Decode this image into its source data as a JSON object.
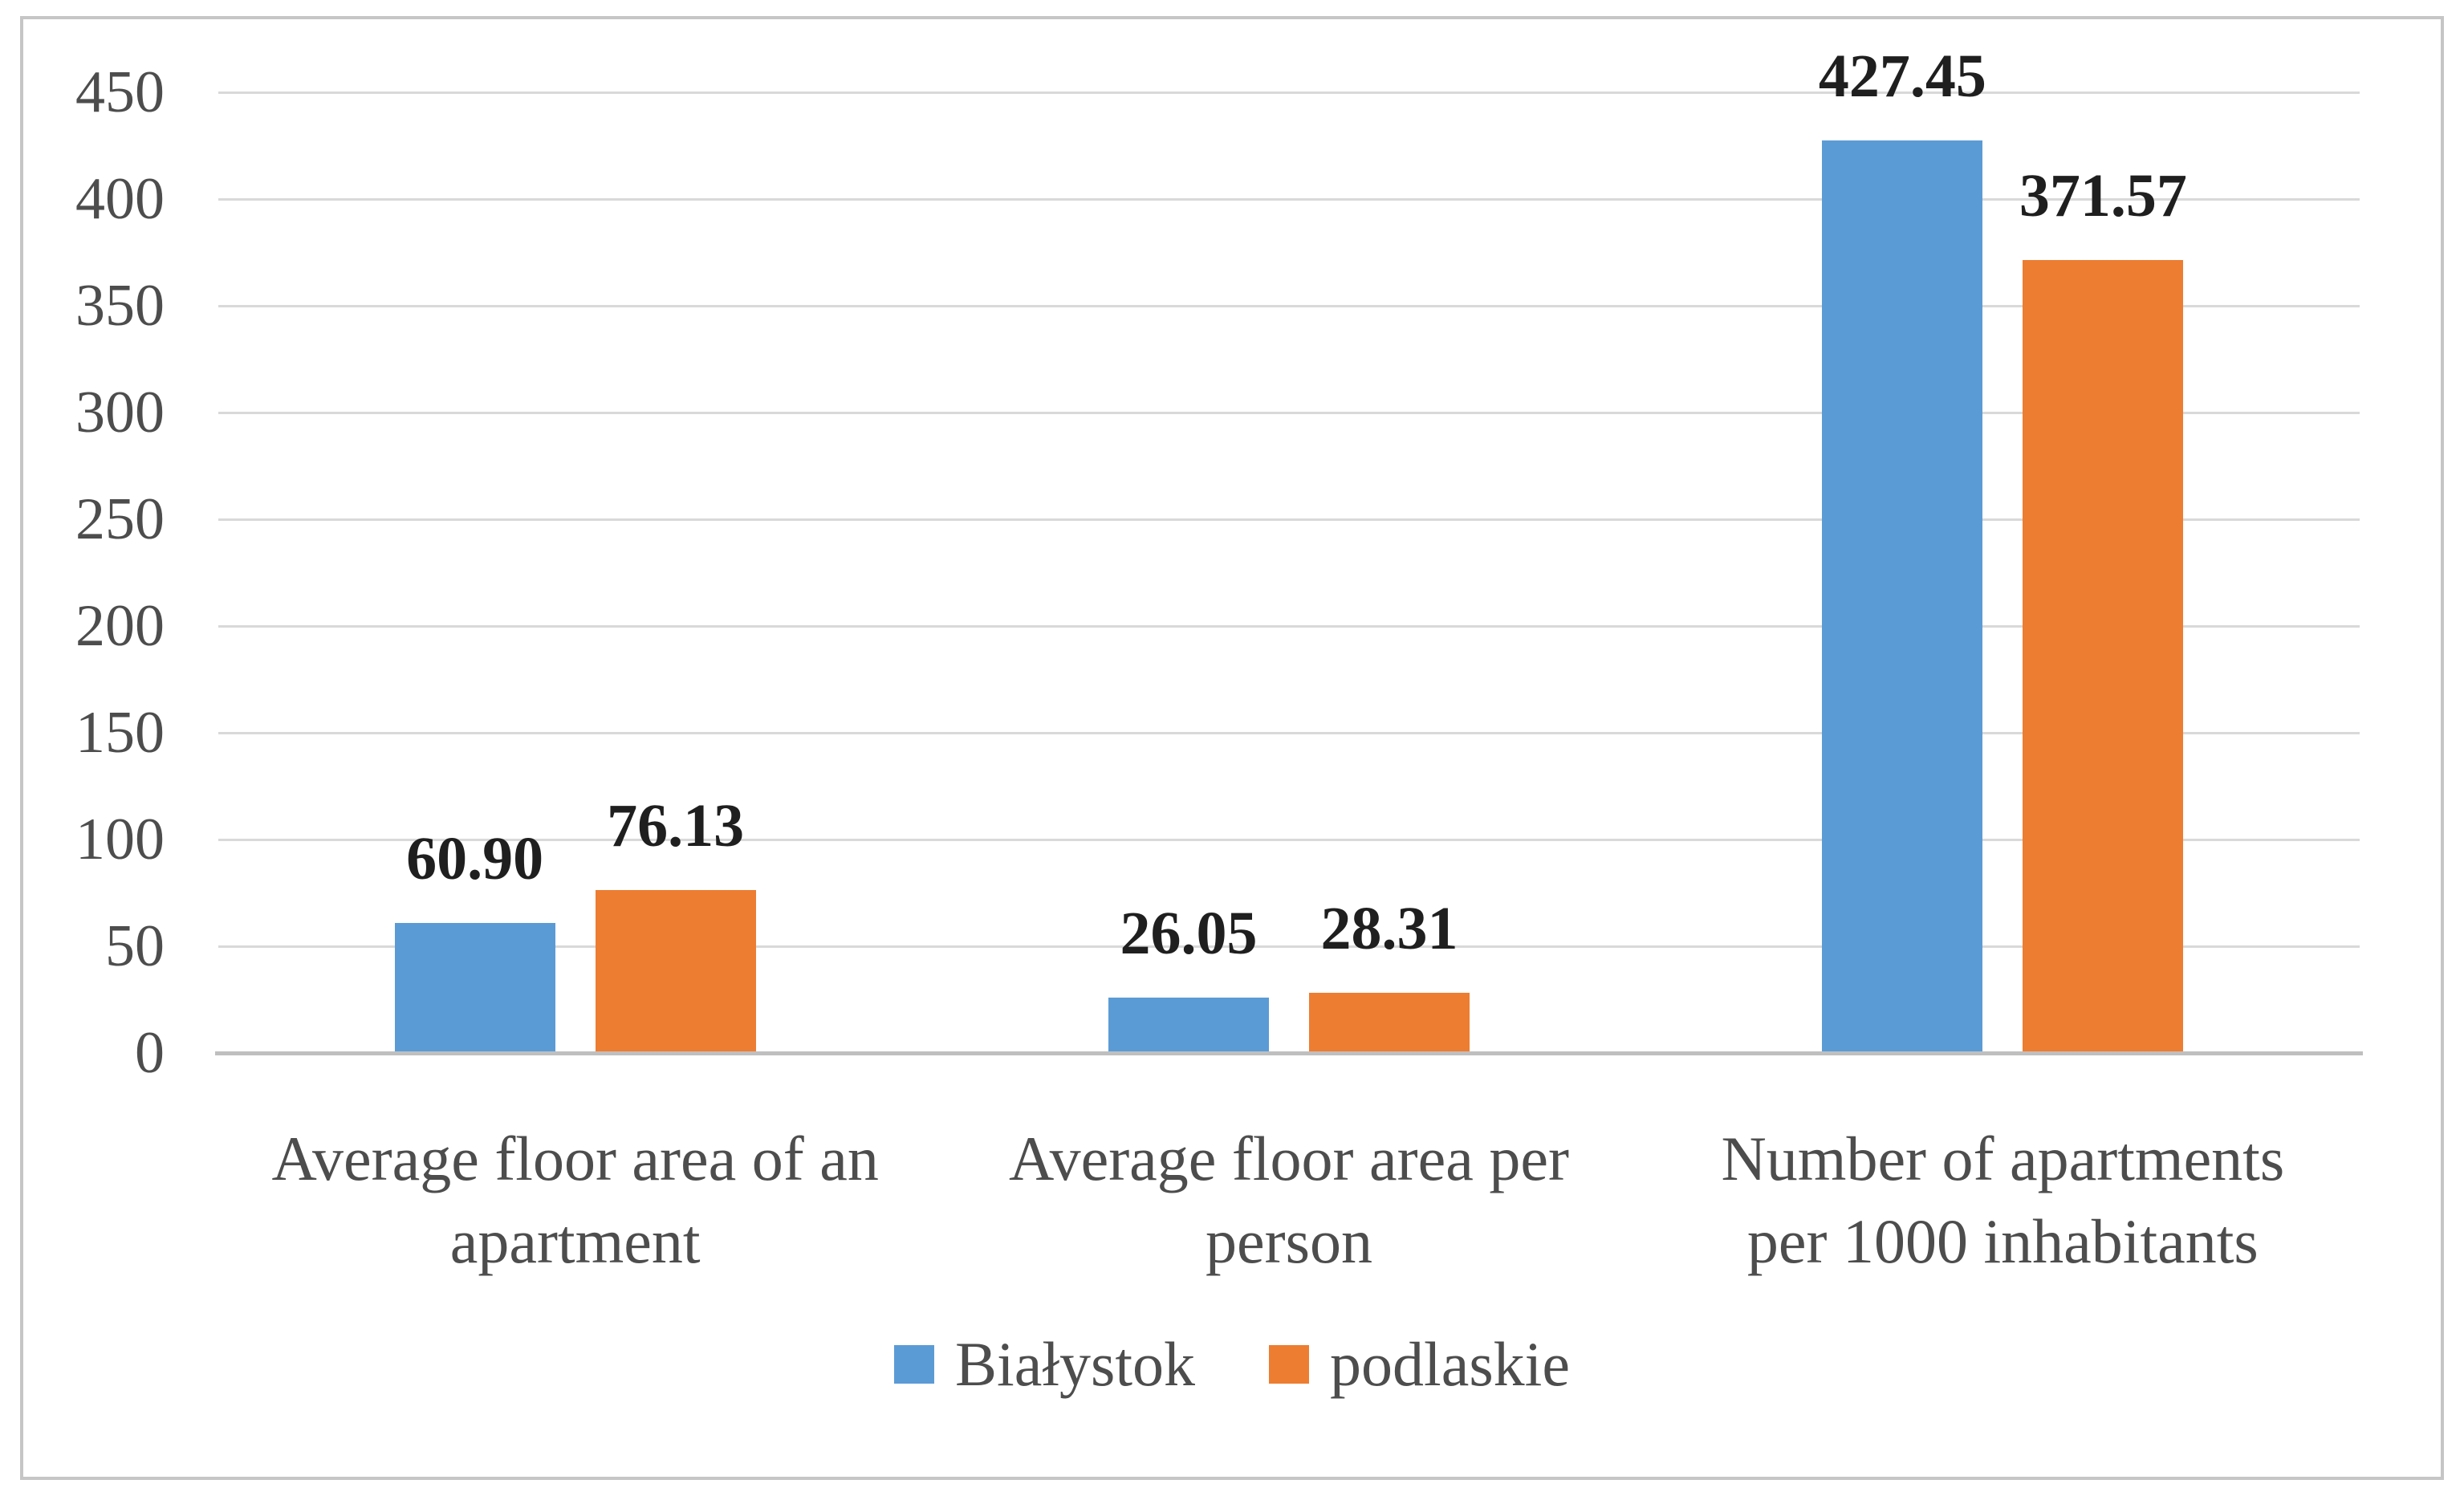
{
  "figure": {
    "background_color": "#FFFFFF",
    "border_color": "#C6C6C6",
    "gridline_color": "#D9D9D9",
    "axis_line_color": "#BFBFBF",
    "text_color": "#4D4D4D",
    "data_label_color": "#1F1F1F"
  },
  "chart_data": {
    "type": "bar",
    "title": "",
    "xlabel": "",
    "ylabel": "",
    "grid": true,
    "legend_position": "bottom",
    "categories": [
      "Average floor area of an apartment",
      "Average floor area per person",
      "Number of apartments per 1000 inhabitants"
    ],
    "category_lines": [
      [
        "Average floor area of an",
        "apartment"
      ],
      [
        "Average floor area per",
        "person"
      ],
      [
        "Number of apartments",
        "per 1000 inhabitants"
      ]
    ],
    "series": [
      {
        "name": "Białystok",
        "color": "#5B9BD5",
        "values": [
          60.9,
          26.05,
          427.45
        ],
        "labels": [
          "60.90",
          "26.05",
          "427.45"
        ]
      },
      {
        "name": "podlaskie",
        "color": "#ED7D31",
        "values": [
          76.13,
          28.31,
          371.57
        ],
        "labels": [
          "76.13",
          "28.31",
          "371.57"
        ]
      }
    ],
    "y_axis": {
      "min": 0,
      "max": 450,
      "tick_step": 50,
      "ticks": [
        "0",
        "50",
        "100",
        "150",
        "200",
        "250",
        "300",
        "350",
        "400",
        "450"
      ]
    }
  },
  "legend": {
    "items": [
      {
        "label": "Białystok",
        "color": "#5B9BD5"
      },
      {
        "label": "podlaskie",
        "color": "#ED7D31"
      }
    ]
  }
}
